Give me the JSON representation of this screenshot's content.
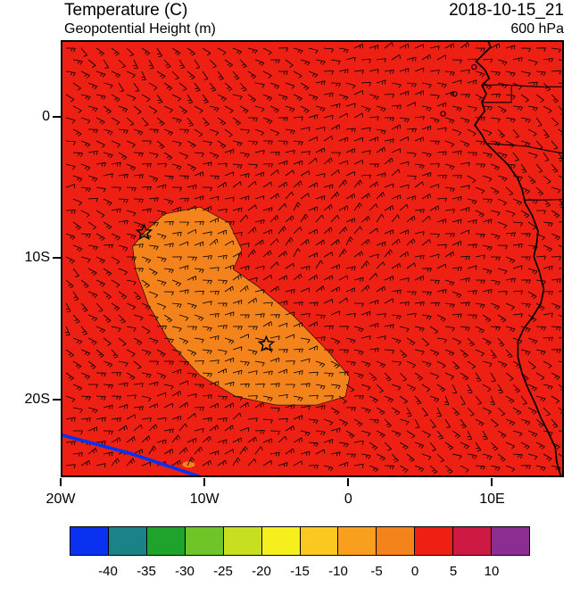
{
  "header": {
    "title_left_line1": "Temperature (C)",
    "title_left_line2": "Geopotential Height (m)",
    "title_right_line1": "2018-10-15_21",
    "title_right_line2": "600 hPa"
  },
  "chart_data": {
    "type": "heatmap",
    "title": "Temperature (C)",
    "subtitle": "Geopotential Height (m)",
    "datetime": "2018-10-15_21",
    "pressure_level": "600 hPa",
    "projection": "lat-lon map of southeast Atlantic / southwest Africa",
    "lon_range_deg": [
      -20,
      15
    ],
    "lat_range_deg": [
      -25.5,
      5.4
    ],
    "x_ticks": [
      {
        "label": "20W",
        "lon": -20
      },
      {
        "label": "10W",
        "lon": -10
      },
      {
        "label": "0",
        "lon": 0
      },
      {
        "label": "10E",
        "lon": 10
      }
    ],
    "y_ticks": [
      {
        "label": "0",
        "lat": 0
      },
      {
        "label": "10S",
        "lat": -10
      },
      {
        "label": "20S",
        "lat": -20
      }
    ],
    "temperature_field": {
      "background_band_c": [
        0,
        5
      ],
      "background_color": "#ee2013",
      "cool_patch_band_c": [
        -5,
        0
      ],
      "cool_patch_color": "#f4831b",
      "cool_patch_polygon_lonlat": [
        [
          -14.2,
          -8.2
        ],
        [
          -12.8,
          -6.9
        ],
        [
          -10.3,
          -6.4
        ],
        [
          -8.3,
          -7.5
        ],
        [
          -7.4,
          -9.4
        ],
        [
          -8.0,
          -10.8
        ],
        [
          -6.3,
          -12.0
        ],
        [
          -3.8,
          -14.1
        ],
        [
          -1.4,
          -16.6
        ],
        [
          0.1,
          -18.4
        ],
        [
          -0.2,
          -19.8
        ],
        [
          -2.2,
          -20.4
        ],
        [
          -5.0,
          -20.4
        ],
        [
          -7.8,
          -19.8
        ],
        [
          -10.3,
          -18.3
        ],
        [
          -12.4,
          -16.0
        ],
        [
          -13.9,
          -13.3
        ],
        [
          -14.8,
          -10.8
        ],
        [
          -15.0,
          -9.2
        ]
      ],
      "small_patch_lonlat": [
        -11.1,
        -24.6
      ]
    },
    "height_contour": {
      "color": "#0033ee",
      "points_lonlat": [
        [
          -20,
          -22.5
        ],
        [
          -15.2,
          -23.8
        ],
        [
          -10.2,
          -25.5
        ]
      ]
    },
    "markers": [
      {
        "type": "star",
        "lon": -14.2,
        "lat": -8.2
      },
      {
        "type": "star",
        "lon": -5.7,
        "lat": -16.1
      }
    ],
    "wind_barbs": {
      "present": true,
      "coverage": "full domain",
      "color": "#000000"
    },
    "coastline_lonlat": [
      [
        9.7,
        5.4
      ],
      [
        9.9,
        4.9
      ],
      [
        9.4,
        4.4
      ],
      [
        8.9,
        3.9
      ],
      [
        9.5,
        3.3
      ],
      [
        9.8,
        2.7
      ],
      [
        9.3,
        2.2
      ],
      [
        9.6,
        1.6
      ],
      [
        9.3,
        1.0
      ],
      [
        9.5,
        0.4
      ],
      [
        9.2,
        0.0
      ],
      [
        8.8,
        -0.6
      ],
      [
        9.3,
        -1.3
      ],
      [
        9.6,
        -1.9
      ],
      [
        10.3,
        -2.6
      ],
      [
        11.1,
        -3.4
      ],
      [
        11.8,
        -4.4
      ],
      [
        12.1,
        -5.2
      ],
      [
        12.3,
        -6.1
      ],
      [
        12.8,
        -7.0
      ],
      [
        13.2,
        -8.1
      ],
      [
        13.1,
        -9.0
      ],
      [
        12.9,
        -9.9
      ],
      [
        13.3,
        -11.0
      ],
      [
        13.6,
        -12.2
      ],
      [
        13.4,
        -13.2
      ],
      [
        12.8,
        -14.2
      ],
      [
        12.2,
        -15.0
      ],
      [
        11.8,
        -15.9
      ],
      [
        11.8,
        -17.0
      ],
      [
        12.1,
        -18.2
      ],
      [
        12.5,
        -19.2
      ],
      [
        13.0,
        -20.3
      ],
      [
        13.4,
        -21.3
      ],
      [
        13.9,
        -22.3
      ],
      [
        14.4,
        -23.4
      ],
      [
        14.5,
        -24.4
      ],
      [
        14.8,
        -25.5
      ]
    ],
    "borders_lonlat": [
      [
        [
          9.3,
          2.2
        ],
        [
          10.5,
          2.25
        ],
        [
          11.6,
          2.2
        ],
        [
          13.2,
          2.1
        ],
        [
          15,
          2.1
        ]
      ],
      [
        [
          9.3,
          1.0
        ],
        [
          11.35,
          1.0
        ],
        [
          11.35,
          2.2
        ]
      ],
      [
        [
          9.6,
          -1.9
        ],
        [
          11.0,
          -2.0
        ],
        [
          12.4,
          -2.1
        ],
        [
          13.8,
          -2.4
        ],
        [
          15,
          -2.6
        ]
      ],
      [
        [
          12.3,
          -5.9
        ],
        [
          13.6,
          -5.9
        ],
        [
          15,
          -5.85
        ]
      ]
    ],
    "islands_lonlat": [
      [
        6.6,
        0.2
      ],
      [
        7.4,
        1.6
      ],
      [
        8.75,
        3.5
      ]
    ],
    "colorbar": {
      "units": "C",
      "tick_labels": [
        "-40",
        "-35",
        "-30",
        "-25",
        "-20",
        "-15",
        "-10",
        "-5",
        "0",
        "5",
        "10"
      ],
      "colors": [
        "#0a30f0",
        "#1b8287",
        "#1fa32c",
        "#6fc427",
        "#c6e021",
        "#f6ee1d",
        "#fbc81f",
        "#f8a01d",
        "#f4831b",
        "#ee2013",
        "#cc1a45",
        "#8c2d92"
      ]
    }
  }
}
